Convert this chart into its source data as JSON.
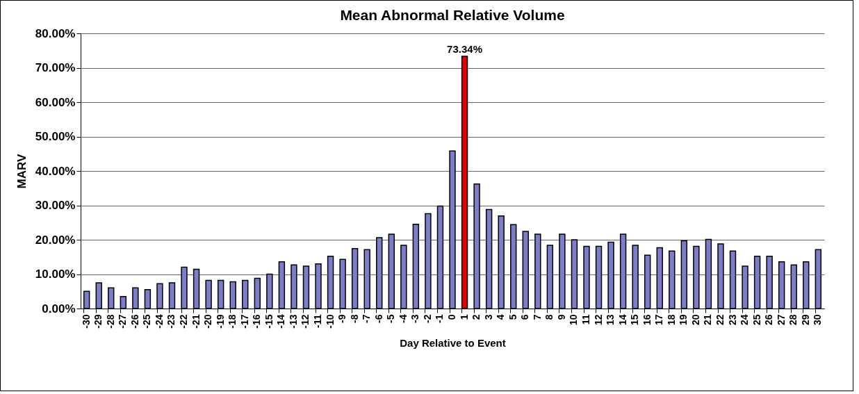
{
  "chart_data": {
    "type": "bar",
    "title": "Mean Abnormal Relative Volume",
    "xlabel": "Day Relative to Event",
    "ylabel": "MARV",
    "categories": [
      "-30",
      "-29",
      "-28",
      "-27",
      "-26",
      "-25",
      "-24",
      "-23",
      "-22",
      "-21",
      "-20",
      "-19",
      "-18",
      "-17",
      "-16",
      "-15",
      "-14",
      "-13",
      "-12",
      "-11",
      "-10",
      "-9",
      "-8",
      "-7",
      "-6",
      "-5",
      "-4",
      "-3",
      "-2",
      "-1",
      "0",
      "1",
      "2",
      "3",
      "4",
      "5",
      "6",
      "7",
      "8",
      "9",
      "10",
      "11",
      "12",
      "13",
      "14",
      "15",
      "16",
      "17",
      "18",
      "19",
      "20",
      "21",
      "22",
      "23",
      "24",
      "25",
      "26",
      "27",
      "28",
      "29",
      "30"
    ],
    "values": [
      5,
      7.5,
      6,
      3.5,
      6,
      5.5,
      7.2,
      7.5,
      12,
      11.4,
      8.2,
      8.2,
      7.8,
      8.2,
      8.8,
      10,
      13.6,
      12.7,
      12.3,
      13,
      15.2,
      14.3,
      17.4,
      17.1,
      20.6,
      21.6,
      18.4,
      24.5,
      27.6,
      29.8,
      45.8,
      73.34,
      36.2,
      28.8,
      26.9,
      24.4,
      22.4,
      21.6,
      18.4,
      21.6,
      20,
      18.1,
      18.1,
      19.3,
      21.6,
      18.4,
      15.5,
      17.7,
      16.7,
      19.7,
      18.1,
      20.1,
      18.8,
      16.7,
      12.3,
      15.2,
      15.2,
      13.6,
      12.7,
      13.6,
      17.1
    ],
    "colors": [
      "#7c7cc8",
      "#7c7cc8",
      "#7c7cc8",
      "#7c7cc8",
      "#7c7cc8",
      "#7c7cc8",
      "#7c7cc8",
      "#7c7cc8",
      "#7c7cc8",
      "#7c7cc8",
      "#7c7cc8",
      "#7c7cc8",
      "#7c7cc8",
      "#7c7cc8",
      "#7c7cc8",
      "#7c7cc8",
      "#7c7cc8",
      "#7c7cc8",
      "#7c7cc8",
      "#7c7cc8",
      "#7c7cc8",
      "#7c7cc8",
      "#7c7cc8",
      "#7c7cc8",
      "#7c7cc8",
      "#7c7cc8",
      "#7c7cc8",
      "#7c7cc8",
      "#7c7cc8",
      "#7c7cc8",
      "#7c7cc8",
      "#e00000",
      "#7c7cc8",
      "#7c7cc8",
      "#7c7cc8",
      "#7c7cc8",
      "#7c7cc8",
      "#7c7cc8",
      "#7c7cc8",
      "#7c7cc8",
      "#7c7cc8",
      "#7c7cc8",
      "#7c7cc8",
      "#7c7cc8",
      "#7c7cc8",
      "#7c7cc8",
      "#7c7cc8",
      "#7c7cc8",
      "#7c7cc8",
      "#7c7cc8",
      "#7c7cc8",
      "#7c7cc8",
      "#7c7cc8",
      "#7c7cc8",
      "#7c7cc8",
      "#7c7cc8",
      "#7c7cc8",
      "#7c7cc8",
      "#7c7cc8",
      "#7c7cc8",
      "#7c7cc8"
    ],
    "value_labels": [
      null,
      null,
      null,
      null,
      null,
      null,
      null,
      null,
      null,
      null,
      null,
      null,
      null,
      null,
      null,
      null,
      null,
      null,
      null,
      null,
      null,
      null,
      null,
      null,
      null,
      null,
      null,
      null,
      null,
      null,
      null,
      "73.34%",
      null,
      null,
      null,
      null,
      null,
      null,
      null,
      null,
      null,
      null,
      null,
      null,
      null,
      null,
      null,
      null,
      null,
      null,
      null,
      null,
      null,
      null,
      null,
      null,
      null,
      null,
      null,
      null,
      null
    ],
    "ylim": [
      0,
      80
    ],
    "yticks": [
      {
        "value": 0,
        "label": "0.00%"
      },
      {
        "value": 10,
        "label": "10.00%"
      },
      {
        "value": 20,
        "label": "20.00%"
      },
      {
        "value": 30,
        "label": "30.00%"
      },
      {
        "value": 40,
        "label": "40.00%"
      },
      {
        "value": 50,
        "label": "50.00%"
      },
      {
        "value": 60,
        "label": "60.00%"
      },
      {
        "value": 70,
        "label": "70.00%"
      },
      {
        "value": 80,
        "label": "80.00%"
      }
    ],
    "grid": "y"
  }
}
